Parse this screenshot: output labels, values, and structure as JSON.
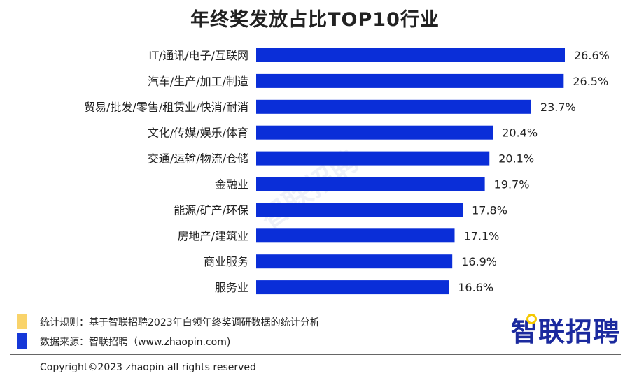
{
  "chart_data": {
    "type": "bar",
    "orientation": "horizontal",
    "title": "年终奖发放占比TOP10行业",
    "categories": [
      "IT/通讯/电子/互联网",
      "汽车/生产/加工/制造",
      "贸易/批发/零售/租赁业/快消/耐消",
      "文化/传媒/娱乐/体育",
      "交通/运输/物流/仓储",
      "金融业",
      "能源/矿产/环保",
      "房地产/建筑业",
      "商业服务",
      "服务业"
    ],
    "values": [
      26.6,
      26.5,
      23.7,
      20.4,
      20.1,
      19.7,
      17.8,
      17.1,
      16.9,
      16.6
    ],
    "data_labels": [
      "26.6%",
      "26.5%",
      "23.7%",
      "20.4%",
      "20.1%",
      "19.7%",
      "17.8%",
      "17.1%",
      "16.9%",
      "16.6%"
    ],
    "xlim": [
      0,
      26.6
    ],
    "grid": false,
    "bar_color": "#0a2ed8"
  },
  "footer": {
    "rule_label": "统计规则：基于智联招聘2023年白领年终奖调研数据的统计分析",
    "source_label": "数据来源：智联招聘（www.zhaopin.com)",
    "rule_color": "#f9d36a",
    "source_color": "#1638d8",
    "copyright": "Copyright©2023 zhaopin all rights reserved"
  },
  "logo": "智联招聘",
  "watermark": "智联招聘"
}
